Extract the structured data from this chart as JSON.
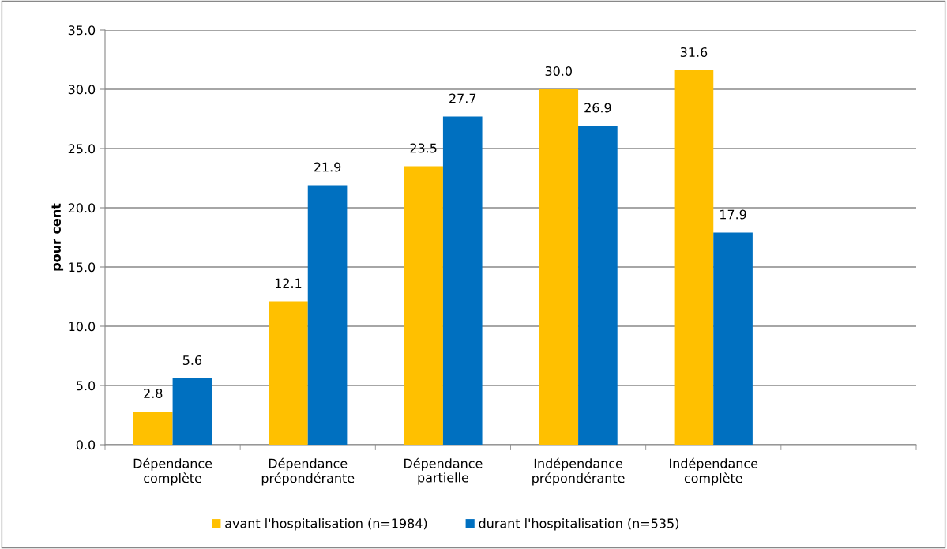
{
  "chart_data": {
    "type": "bar",
    "ylabel": "pour cent",
    "categories": [
      "Dépendance\ncomplète",
      "Dépendance\nprépondérante",
      "Dépendance\npartielle",
      "Indépendance\nprépondérante",
      "Indépendance\ncomplète",
      null
    ],
    "series": [
      {
        "name": "avant l'hospitalisation (n=1984)",
        "color": "#ffc000",
        "values": [
          2.8,
          12.1,
          23.5,
          30.0,
          31.6,
          null
        ],
        "value_labels": [
          "2.8",
          "12.1",
          "23.5",
          "30.0",
          "31.6",
          null
        ]
      },
      {
        "name": "durant l'hospitalisation (n=535)",
        "color": "#0070c0",
        "values": [
          5.6,
          21.9,
          27.7,
          26.9,
          17.9,
          null
        ],
        "value_labels": [
          "5.6",
          "21.9",
          "27.7",
          "26.9",
          "17.9",
          null
        ]
      }
    ],
    "ylim": [
      0,
      35
    ],
    "yticks": [
      {
        "value": 0,
        "label": "0.0"
      },
      {
        "value": 5,
        "label": "5.0"
      },
      {
        "value": 10,
        "label": "10.0"
      },
      {
        "value": 15,
        "label": "15.0"
      },
      {
        "value": 20,
        "label": "20.0"
      },
      {
        "value": 25,
        "label": "25.0"
      },
      {
        "value": 30,
        "label": "30.0"
      },
      {
        "value": 35,
        "label": "35.0"
      }
    ],
    "grid": "y",
    "legend": "bottom"
  }
}
